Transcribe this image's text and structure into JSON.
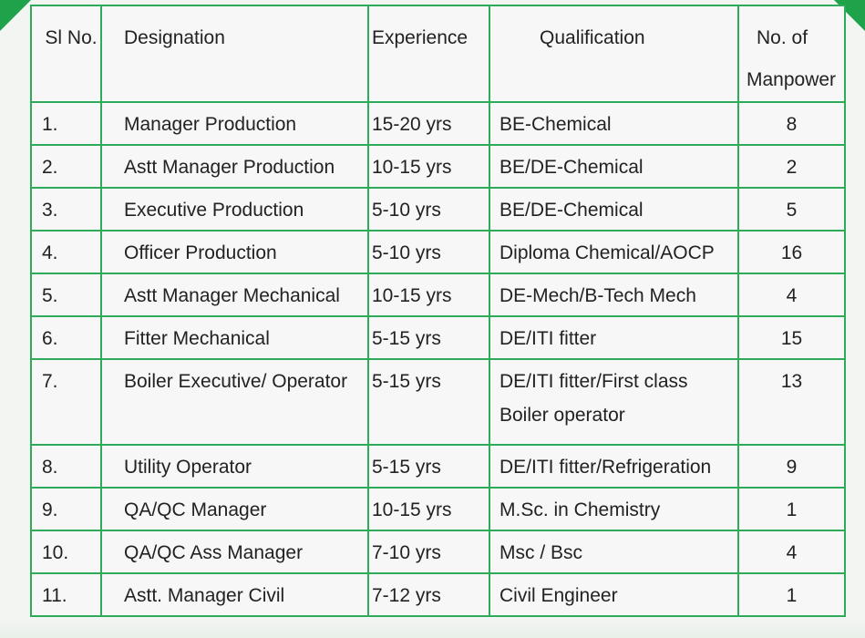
{
  "table": {
    "headers": {
      "sl_no": "Sl No.",
      "designation": "Designation",
      "experience": "Experience",
      "qualification": "Qualification",
      "manpower_line1": "No. of",
      "manpower_line2": "Manpower"
    },
    "rows": [
      {
        "sl": "1.",
        "designation": "Manager Production",
        "experience": "15-20 yrs",
        "qualification": "BE-Chemical",
        "qualification_line2": "",
        "manpower": "8"
      },
      {
        "sl": "2.",
        "designation": "Astt Manager Production",
        "experience": "10-15 yrs",
        "qualification": "BE/DE-Chemical",
        "qualification_line2": "",
        "manpower": "2"
      },
      {
        "sl": "3.",
        "designation": "Executive Production",
        "experience": "5-10 yrs",
        "qualification": "BE/DE-Chemical",
        "qualification_line2": "",
        "manpower": "5"
      },
      {
        "sl": "4.",
        "designation": "Officer Production",
        "experience": "5-10 yrs",
        "qualification": "Diploma Chemical/AOCP",
        "qualification_line2": "",
        "manpower": "16"
      },
      {
        "sl": "5.",
        "designation": "Astt Manager Mechanical",
        "experience": "10-15 yrs",
        "qualification": "DE-Mech/B-Tech Mech",
        "qualification_line2": "",
        "manpower": "4"
      },
      {
        "sl": "6.",
        "designation": "Fitter  Mechanical",
        "experience": "5-15 yrs",
        "qualification": "DE/ITI fitter",
        "qualification_line2": "",
        "manpower": "15"
      },
      {
        "sl": "7.",
        "designation": "Boiler Executive/ Operator",
        "experience": "5-15 yrs",
        "qualification": "DE/ITI fitter/First class",
        "qualification_line2": "Boiler operator",
        "manpower": "13"
      },
      {
        "sl": "8.",
        "designation": "Utility Operator",
        "experience": "5-15 yrs",
        "qualification": "DE/ITI fitter/Refrigeration",
        "qualification_line2": "",
        "manpower": "9"
      },
      {
        "sl": "9.",
        "designation": "QA/QC Manager",
        "experience": "10-15 yrs",
        "qualification": "M.Sc. in  Chemistry",
        "qualification_line2": "",
        "manpower": "1"
      },
      {
        "sl": "10.",
        "designation": "QA/QC Ass Manager",
        "experience": "7-10 yrs",
        "qualification": "Msc / Bsc",
        "qualification_line2": "",
        "manpower": "4"
      },
      {
        "sl": "11.",
        "designation": "Astt. Manager Civil",
        "experience": "7-12 yrs",
        "qualification": "Civil Engineer",
        "qualification_line2": "",
        "manpower": "1"
      }
    ]
  },
  "colors": {
    "border": "#2daa5a",
    "accent": "#1fa34a",
    "text": "#222222"
  }
}
